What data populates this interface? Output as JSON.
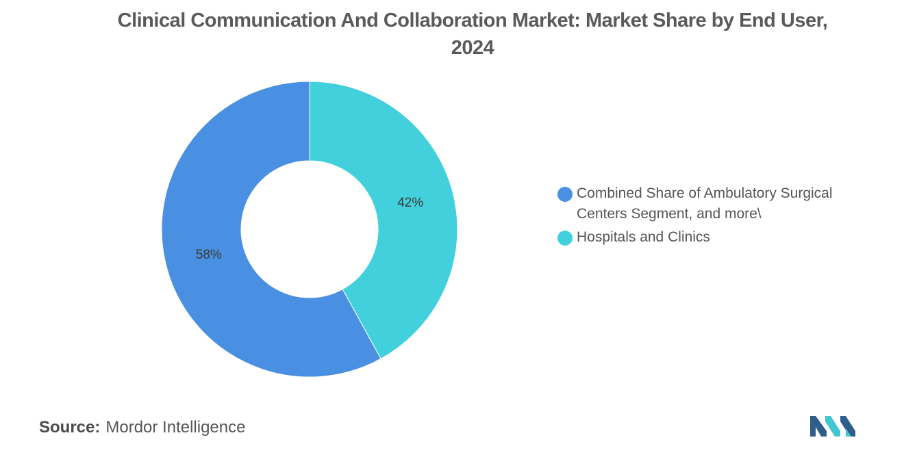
{
  "chart_data": {
    "type": "pie",
    "variant": "donut",
    "title": "Clinical Communication And Collaboration Market: Market Share by End User, 2024",
    "slices": [
      {
        "label": "Hospitals and Clinics",
        "value": 42,
        "value_label": "42%",
        "color": "#42d1dc"
      },
      {
        "label": "Combined Share of Ambulatory Surgical Centers Segment, and more\\",
        "value": 58,
        "value_label": "58%",
        "color": "#4a90e2"
      }
    ],
    "legend": {
      "placement": "right",
      "entries": [
        {
          "label": "Combined Share of Ambulatory Surgical Centers Segment, and more\\",
          "color": "#4a90e2"
        },
        {
          "label": "Hospitals and Clinics",
          "color": "#42d1dc"
        }
      ]
    }
  },
  "source": {
    "label": "Source:",
    "text": "Mordor Intelligence"
  },
  "logo": {
    "icon": "mordor-intelligence-logo",
    "colors": [
      "#2e5f8a",
      "#42c6cf"
    ]
  }
}
